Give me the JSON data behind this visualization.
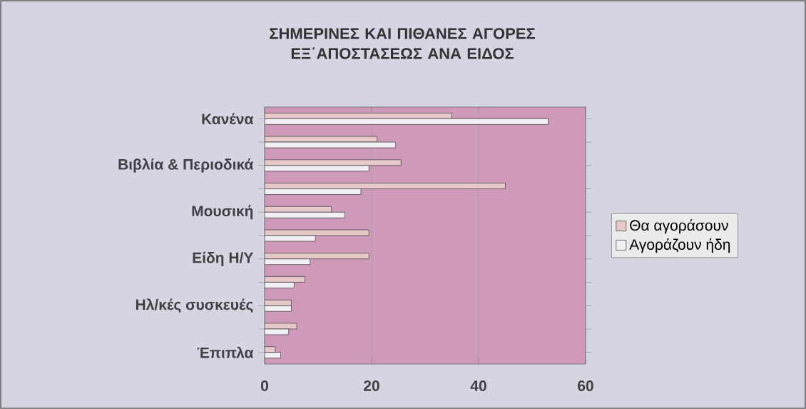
{
  "chart_data": {
    "type": "bar",
    "orientation": "horizontal",
    "title": "ΣΗΜΕΡΙΝΕΣ ΚΑΙ ΠΙΘΑΝΕΣ ΑΓΟΡΕΣ ΕΞ΄ΑΠΟΣΤΑΣΕΩΣ ΑΝΑ ΕΙΔΟΣ",
    "categories": [
      "Κανένα",
      null,
      "Βιβλία & Περιοδικά",
      null,
      "Μουσική",
      null,
      "Είδη Η/Υ",
      null,
      "Ηλ/κές συσκευές",
      null,
      "Έπιπλα"
    ],
    "series": [
      {
        "name": "Θα αγοράσουν",
        "color": "#e6c8c8",
        "values": [
          35,
          21,
          25.5,
          45,
          12.5,
          19.5,
          19.5,
          7.5,
          5,
          6,
          2
        ]
      },
      {
        "name": "Αγοράζουν ήδη",
        "color": "#f2eff4",
        "values": [
          53,
          24.5,
          19.5,
          18,
          15,
          9.5,
          8.5,
          5.5,
          5,
          4.5,
          3
        ]
      }
    ],
    "xlim": [
      0,
      60
    ],
    "xticks": [
      0,
      20,
      40,
      60
    ],
    "grid": "x",
    "legend": "right"
  }
}
